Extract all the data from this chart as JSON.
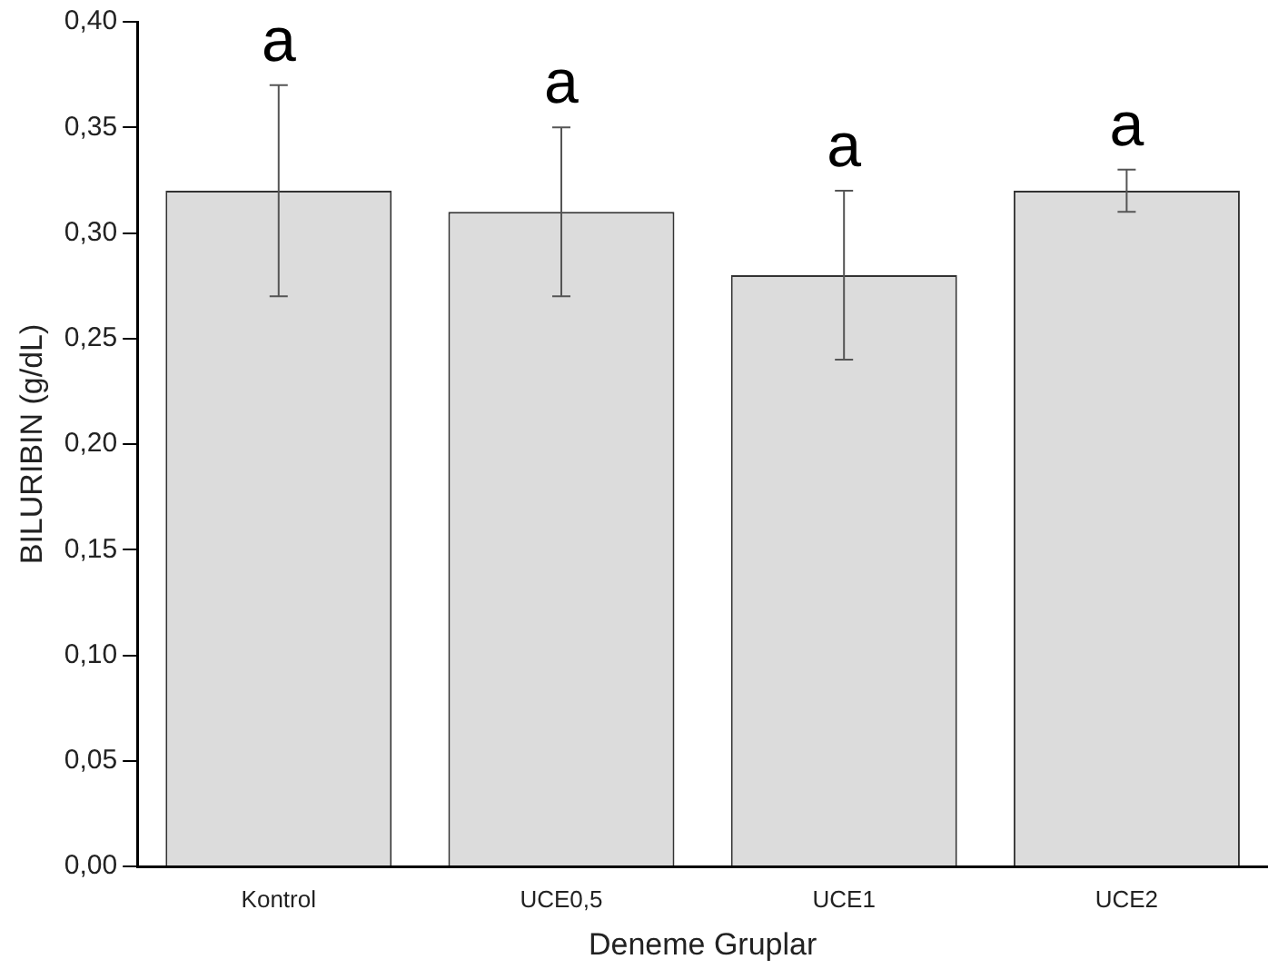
{
  "chart_data": {
    "type": "bar",
    "xlabel": "Deneme Gruplar",
    "ylabel": "BILURIBIN (g/dL)",
    "categories": [
      "Kontrol",
      "UCE0,5",
      "UCE1",
      "UCE2"
    ],
    "values": [
      0.32,
      0.31,
      0.28,
      0.32
    ],
    "color": "#dcdcdc",
    "errors": [
      0.05,
      0.04,
      0.04,
      0.01
    ],
    "ylim": [
      0,
      0.4
    ],
    "yticks": [
      {
        "value": 0,
        "label": "0,00"
      },
      {
        "value": 0.05,
        "label": "0,05"
      },
      {
        "value": 0.1,
        "label": "0,10"
      },
      {
        "value": 0.15,
        "label": "0,15"
      },
      {
        "value": 0.2,
        "label": "0,20"
      },
      {
        "value": 0.25,
        "label": "0,25"
      },
      {
        "value": 0.3,
        "label": "0,30"
      },
      {
        "value": 0.35,
        "label": "0,35"
      },
      {
        "value": 0.4,
        "label": "0,40"
      }
    ],
    "annotations": [
      "a",
      "a",
      "a",
      "a"
    ],
    "grid": false,
    "legend": false
  }
}
